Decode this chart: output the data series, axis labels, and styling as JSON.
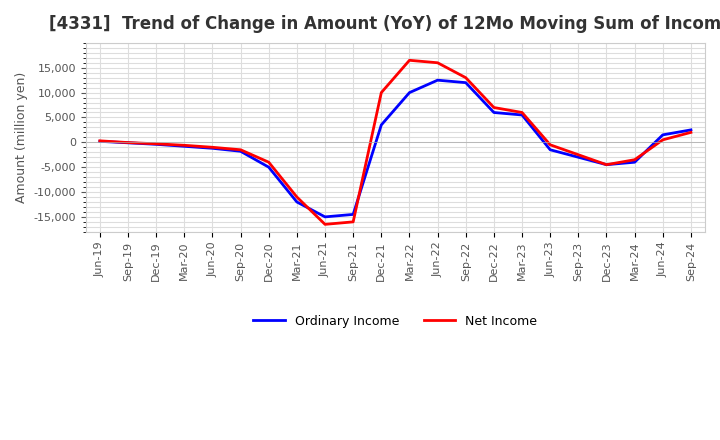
{
  "title": "[4331]  Trend of Change in Amount (YoY) of 12Mo Moving Sum of Incomes",
  "ylabel": "Amount (million yen)",
  "background_color": "#ffffff",
  "grid_color": "#dddddd",
  "x_labels": [
    "Jun-19",
    "Sep-19",
    "Dec-19",
    "Mar-20",
    "Jun-20",
    "Sep-20",
    "Dec-20",
    "Mar-21",
    "Jun-21",
    "Sep-21",
    "Dec-21",
    "Mar-22",
    "Jun-22",
    "Sep-22",
    "Dec-22",
    "Mar-23",
    "Jun-23",
    "Sep-23",
    "Dec-23",
    "Mar-24",
    "Jun-24",
    "Sep-24"
  ],
  "ordinary_income": [
    200,
    -100,
    -400,
    -800,
    -1200,
    -1800,
    -5000,
    -12000,
    -15000,
    -14500,
    3500,
    10000,
    12500,
    12000,
    6000,
    5500,
    -1500,
    -3000,
    -4500,
    -4000,
    1500,
    2500
  ],
  "net_income": [
    300,
    -50,
    -300,
    -600,
    -1000,
    -1500,
    -4000,
    -11000,
    -16500,
    -16000,
    10000,
    16500,
    16000,
    13000,
    7000,
    6000,
    -500,
    -2500,
    -4500,
    -3500,
    500,
    2000
  ],
  "ordinary_color": "#0000ff",
  "net_color": "#ff0000",
  "ylim": [
    -18000,
    20000
  ],
  "yticks": [
    -15000,
    -10000,
    -5000,
    0,
    5000,
    10000,
    15000
  ],
  "line_width": 2.0
}
